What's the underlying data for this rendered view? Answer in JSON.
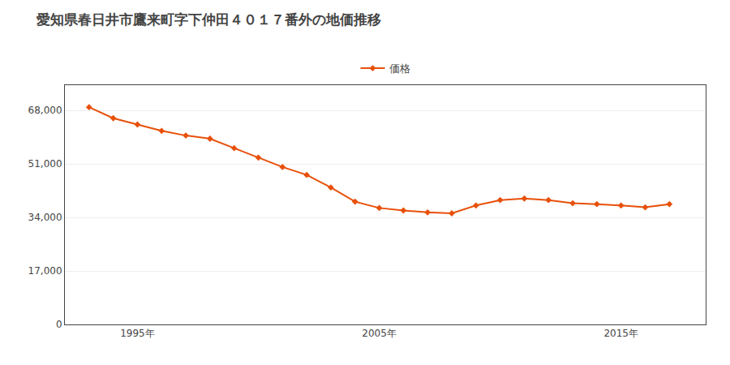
{
  "chart_data": {
    "type": "line",
    "title": "愛知県春日井市鷹来町字下仲田４０１７番外の地価推移",
    "x": [
      1993,
      1994,
      1995,
      1996,
      1997,
      1998,
      1999,
      2000,
      2001,
      2002,
      2003,
      2004,
      2005,
      2006,
      2007,
      2008,
      2009,
      2010,
      2011,
      2012,
      2013,
      2014,
      2015,
      2016,
      2017
    ],
    "series": [
      {
        "name": "価格",
        "color": "#E8500A",
        "marker": "diamond",
        "values": [
          69000,
          65500,
          63500,
          61500,
          60000,
          59000,
          56000,
          53000,
          50000,
          47500,
          43500,
          39000,
          37000,
          36200,
          35600,
          35300,
          37800,
          39500,
          40000,
          39500,
          38500,
          38200,
          37800,
          37200,
          38200
        ]
      }
    ],
    "xlim": [
      1992,
      2018.5
    ],
    "xticks": [
      {
        "value": 1995,
        "label": "1995年"
      },
      {
        "value": 2005,
        "label": "2005年"
      },
      {
        "value": 2015,
        "label": "2015年"
      }
    ],
    "ylim": [
      0,
      76000
    ],
    "yticks": [
      0,
      {
        "value": 17000,
        "label": "17,000"
      },
      {
        "value": 34000,
        "label": "34,000"
      },
      {
        "value": 51000,
        "label": "51,000"
      },
      {
        "value": 68000,
        "label": "68,000"
      }
    ],
    "grid": "y",
    "legend": "top"
  }
}
